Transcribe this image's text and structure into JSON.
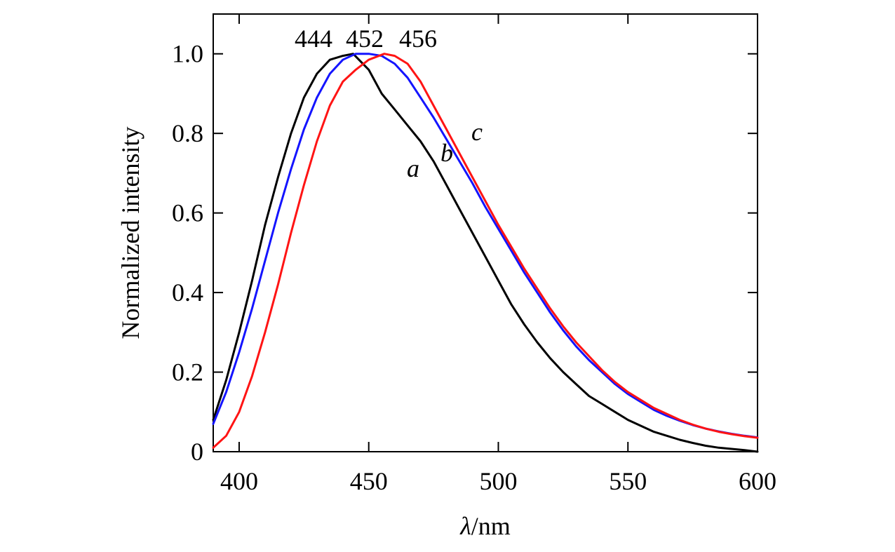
{
  "chart_data": {
    "type": "line",
    "xlabel_symbol": "λ",
    "xlabel_unit": "/nm",
    "ylabel": "Normalized intensity",
    "xlim": [
      390,
      600
    ],
    "ylim": [
      0,
      1.1
    ],
    "x_ticks": [
      400,
      450,
      500,
      550,
      600
    ],
    "x_tick_labels": [
      "400",
      "450",
      "500",
      "550",
      "600"
    ],
    "y_ticks": [
      0,
      0.2,
      0.4,
      0.6,
      0.8,
      1.0
    ],
    "y_tick_labels": [
      "0",
      "0.2",
      "0.4",
      "0.6",
      "0.8",
      "1.0"
    ],
    "grid": false,
    "legend": "none",
    "peak_labels": [
      "444",
      "452",
      "456"
    ],
    "series": [
      {
        "name": "a",
        "color": "#000000",
        "x": [
          390,
          395,
          400,
          405,
          410,
          415,
          420,
          425,
          430,
          435,
          440,
          444,
          450,
          455,
          460,
          465,
          470,
          475,
          480,
          485,
          490,
          495,
          500,
          505,
          510,
          515,
          520,
          525,
          530,
          535,
          540,
          545,
          550,
          555,
          560,
          565,
          570,
          575,
          580,
          585,
          590,
          595,
          600
        ],
        "y": [
          0.08,
          0.18,
          0.3,
          0.43,
          0.57,
          0.69,
          0.8,
          0.89,
          0.95,
          0.985,
          0.995,
          1.0,
          0.96,
          0.9,
          0.86,
          0.82,
          0.78,
          0.73,
          0.67,
          0.61,
          0.55,
          0.49,
          0.43,
          0.37,
          0.32,
          0.275,
          0.235,
          0.2,
          0.17,
          0.14,
          0.12,
          0.1,
          0.08,
          0.065,
          0.05,
          0.04,
          0.03,
          0.022,
          0.015,
          0.01,
          0.007,
          0.004,
          0.0
        ]
      },
      {
        "name": "b",
        "color": "#1414ff",
        "x": [
          390,
          395,
          400,
          405,
          410,
          415,
          420,
          425,
          430,
          435,
          440,
          445,
          450,
          455,
          460,
          465,
          470,
          475,
          480,
          485,
          490,
          495,
          500,
          505,
          510,
          515,
          520,
          525,
          530,
          535,
          540,
          545,
          550,
          555,
          560,
          565,
          570,
          575,
          580,
          585,
          590,
          595,
          600
        ],
        "y": [
          0.07,
          0.15,
          0.25,
          0.36,
          0.48,
          0.6,
          0.71,
          0.81,
          0.89,
          0.95,
          0.985,
          1.0,
          1.0,
          0.995,
          0.975,
          0.94,
          0.89,
          0.84,
          0.785,
          0.73,
          0.675,
          0.615,
          0.56,
          0.505,
          0.45,
          0.4,
          0.35,
          0.305,
          0.265,
          0.23,
          0.2,
          0.17,
          0.145,
          0.125,
          0.105,
          0.09,
          0.078,
          0.067,
          0.058,
          0.051,
          0.045,
          0.04,
          0.036
        ]
      },
      {
        "name": "c",
        "color": "#ff1414",
        "x": [
          390,
          395,
          400,
          405,
          410,
          415,
          420,
          425,
          430,
          435,
          440,
          445,
          450,
          456,
          460,
          465,
          470,
          475,
          480,
          485,
          490,
          495,
          500,
          505,
          510,
          515,
          520,
          525,
          530,
          535,
          540,
          545,
          550,
          555,
          560,
          565,
          570,
          575,
          580,
          585,
          590,
          595,
          600
        ],
        "y": [
          0.01,
          0.04,
          0.1,
          0.19,
          0.3,
          0.42,
          0.55,
          0.67,
          0.78,
          0.87,
          0.93,
          0.96,
          0.985,
          1.0,
          0.995,
          0.975,
          0.93,
          0.87,
          0.81,
          0.75,
          0.69,
          0.63,
          0.57,
          0.515,
          0.46,
          0.41,
          0.36,
          0.315,
          0.275,
          0.24,
          0.205,
          0.175,
          0.15,
          0.13,
          0.11,
          0.095,
          0.08,
          0.068,
          0.058,
          0.05,
          0.044,
          0.039,
          0.035
        ]
      }
    ]
  }
}
